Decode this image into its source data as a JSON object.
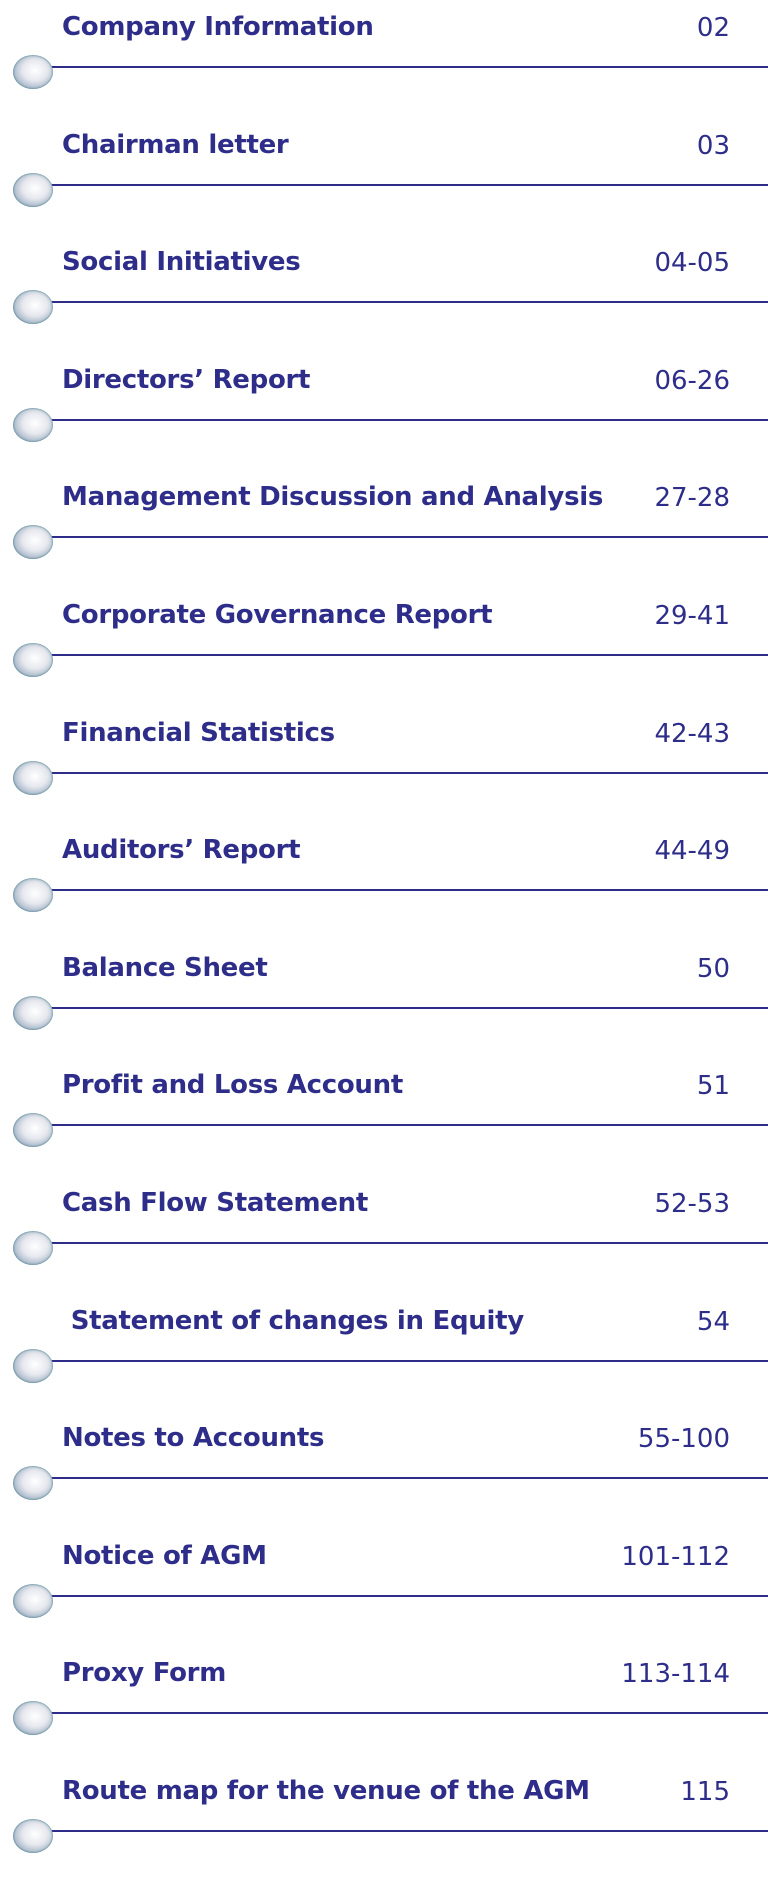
{
  "contents": [
    {
      "title": "Company Information",
      "pages": "02"
    },
    {
      "title": "Chairman letter",
      "pages": "03"
    },
    {
      "title": "Social Initiatives",
      "pages": "04-05"
    },
    {
      "title": "Directors’ Report",
      "pages": "06-26"
    },
    {
      "title": "Management Discussion and Analysis",
      "pages": "27-28"
    },
    {
      "title": "Corporate Governance Report",
      "pages": "29-41"
    },
    {
      "title": "Financial Statistics",
      "pages": "42-43"
    },
    {
      "title": "Auditors’ Report",
      "pages": "44-49"
    },
    {
      "title": "Balance Sheet",
      "pages": "50"
    },
    {
      "title": "Profit and Loss Account",
      "pages": "51"
    },
    {
      "title": "Cash Flow Statement",
      "pages": "52-53"
    },
    {
      "title": " Statement of changes in Equity",
      "pages": "54"
    },
    {
      "title": "Notes to Accounts",
      "pages": "55-100"
    },
    {
      "title": "Notice of AGM",
      "pages": "101-112"
    },
    {
      "title": "Proxy Form",
      "pages": "113-114"
    },
    {
      "title": "Route map for the venue of the AGM",
      "pages": "115"
    }
  ]
}
